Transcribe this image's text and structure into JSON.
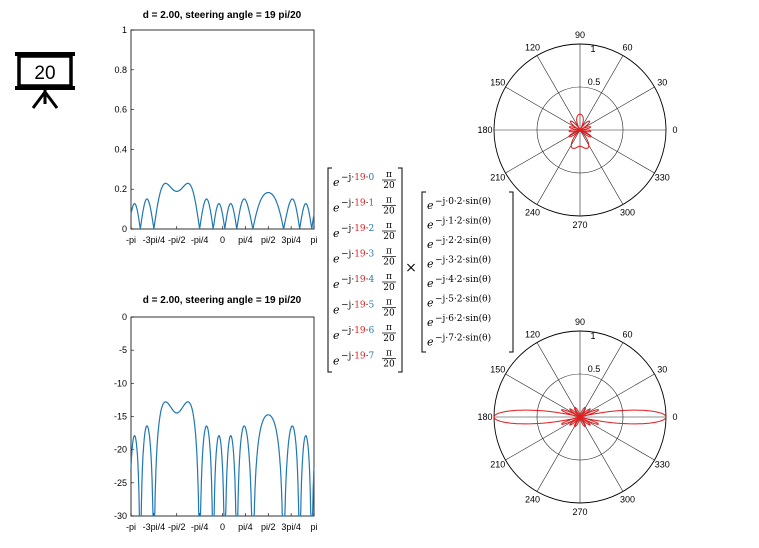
{
  "slide_badge": {
    "number": "20",
    "icon": "presentation-board-icon"
  },
  "chart_data": [
    {
      "type": "line",
      "title": "d = 2.00, steering angle  = 19 pi/20",
      "ylim": [
        0,
        1
      ],
      "yticks": [
        "0",
        "0.2",
        "0.4",
        "0.6",
        "0.8",
        "1"
      ],
      "xticks": [
        "-pi",
        "-3pi/4",
        "-pi/2",
        "-pi/4",
        "0",
        "pi/4",
        "pi/2",
        "3pi/4",
        "pi"
      ],
      "grid": false,
      "color": "#1f77b4",
      "series": [
        {
          "x": [],
          "y": []
        }
      ]
    },
    {
      "type": "line",
      "title": "d = 2.00, steering angle  = 19 pi/20",
      "ylim": [
        -30,
        0
      ],
      "yticks": [
        "-30",
        "-25",
        "-20",
        "-15",
        "-10",
        "-5",
        "0"
      ],
      "xticks": [
        "-pi",
        "-3pi/4",
        "-pi/2",
        "-pi/4",
        "0",
        "pi/4",
        "pi/2",
        "3pi/4",
        "pi"
      ],
      "grid": false,
      "color": "#1f77b4",
      "series": [
        {
          "x": [],
          "y": []
        }
      ]
    },
    {
      "type": "polar",
      "angle_ticks": [
        "0",
        "30",
        "60",
        "90",
        "120",
        "150",
        "180",
        "210",
        "240",
        "270",
        "300",
        "330"
      ],
      "radial_ticks": [
        "0.5",
        "1"
      ],
      "color": "#e31a1c",
      "series": [
        {
          "theta_deg": [],
          "r": []
        }
      ]
    },
    {
      "type": "polar",
      "angle_ticks": [
        "0",
        "30",
        "60",
        "90",
        "120",
        "150",
        "180",
        "210",
        "240",
        "270",
        "300",
        "330"
      ],
      "radial_ticks": [
        "0.5",
        "1"
      ],
      "color": "#e31a1c",
      "series": [
        {
          "theta_deg": [],
          "r": []
        }
      ]
    }
  ],
  "equation": {
    "steering_rows": [
      {
        "base": "e",
        "exp_prefix": "−j·",
        "steer": "19",
        "dot": "·",
        "n": "0",
        "frac_num": "π",
        "frac_den": "20"
      },
      {
        "base": "e",
        "exp_prefix": "−j·",
        "steer": "19",
        "dot": "·",
        "n": "1",
        "frac_num": "π",
        "frac_den": "20"
      },
      {
        "base": "e",
        "exp_prefix": "−j·",
        "steer": "19",
        "dot": "·",
        "n": "2",
        "frac_num": "π",
        "frac_den": "20"
      },
      {
        "base": "e",
        "exp_prefix": "−j·",
        "steer": "19",
        "dot": "·",
        "n": "3",
        "frac_num": "π",
        "frac_den": "20"
      },
      {
        "base": "e",
        "exp_prefix": "−j·",
        "steer": "19",
        "dot": "·",
        "n": "4",
        "frac_num": "π",
        "frac_den": "20"
      },
      {
        "base": "e",
        "exp_prefix": "−j·",
        "steer": "19",
        "dot": "·",
        "n": "5",
        "frac_num": "π",
        "frac_den": "20"
      },
      {
        "base": "e",
        "exp_prefix": "−j·",
        "steer": "19",
        "dot": "·",
        "n": "6",
        "frac_num": "π",
        "frac_den": "20"
      },
      {
        "base": "e",
        "exp_prefix": "−j·",
        "steer": "19",
        "dot": "·",
        "n": "7",
        "frac_num": "π",
        "frac_den": "20"
      }
    ],
    "times": "×",
    "array_rows": [
      {
        "base": "e",
        "exp": "−j·0·2·sin(θ)"
      },
      {
        "base": "e",
        "exp": "−j·1·2·sin(θ)"
      },
      {
        "base": "e",
        "exp": "−j·2·2·sin(θ)"
      },
      {
        "base": "e",
        "exp": "−j·3·2·sin(θ)"
      },
      {
        "base": "e",
        "exp": "−j·4·2·sin(θ)"
      },
      {
        "base": "e",
        "exp": "−j·5·2·sin(θ)"
      },
      {
        "base": "e",
        "exp": "−j·6·2·sin(θ)"
      },
      {
        "base": "e",
        "exp": "−j·7·2·sin(θ)"
      }
    ]
  }
}
